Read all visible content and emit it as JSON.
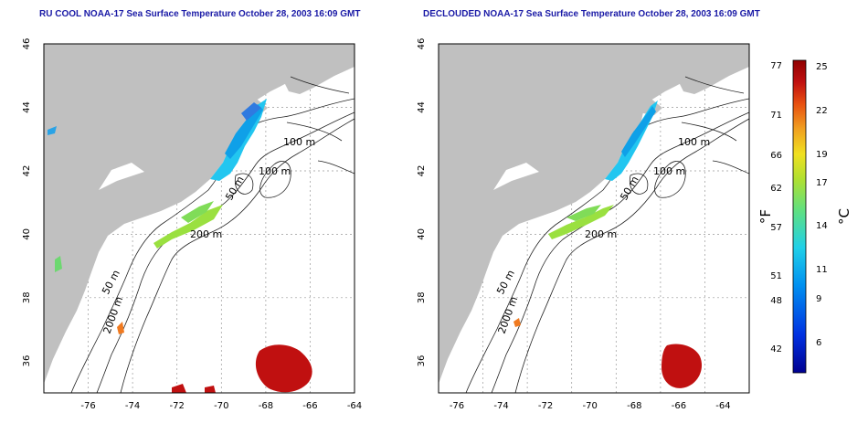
{
  "maps": [
    {
      "title": "RU COOL NOAA-17 Sea Surface Temperature October 28, 2003 16:09 GMT"
    },
    {
      "title": "DECLOUDED NOAA-17 Sea Surface Temperature October 28, 2003 16:09 GMT"
    }
  ],
  "axes": {
    "x_ticks": [
      "-76",
      "-74",
      "-72",
      "-70",
      "-68",
      "-66",
      "-64"
    ],
    "y_ticks": [
      "36",
      "38",
      "40",
      "42",
      "44",
      "46"
    ],
    "lon_range": [
      -77,
      -63
    ],
    "lat_range": [
      35,
      46
    ]
  },
  "contour_labels": [
    "100 m",
    "100 m",
    "50 m",
    "200 m",
    "50 m",
    "2000 m"
  ],
  "colorbar": {
    "fahrenheit_ticks": [
      "77",
      "71",
      "66",
      "62",
      "57",
      "51",
      "48",
      "42"
    ],
    "celsius_ticks": [
      "25",
      "22",
      "19",
      "17",
      "14",
      "11",
      "9",
      "6"
    ],
    "fahrenheit_label": "°F",
    "celsius_label": "°C",
    "range_c": [
      4,
      26
    ]
  },
  "colors": {
    "land": "#c0c0c0",
    "water": "#ffffff",
    "title": "#1a1aa6",
    "grid": "#999999"
  },
  "grid": true
}
